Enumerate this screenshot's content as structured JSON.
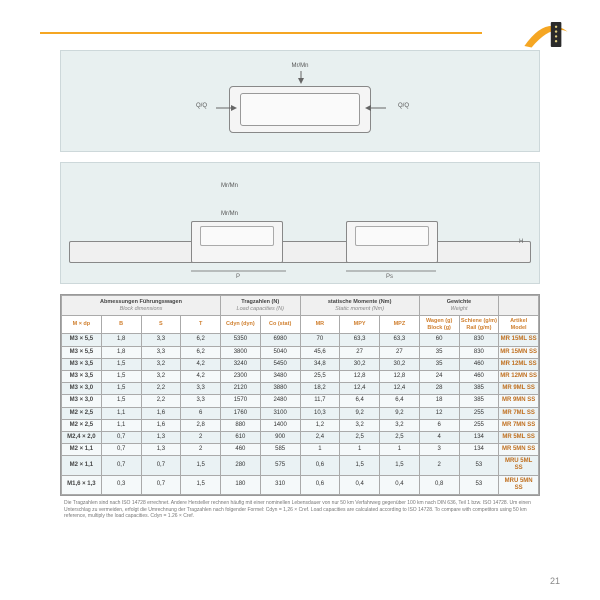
{
  "pageNumber": "21",
  "logo": {
    "swoosh_color": "#f5a623",
    "panel_color": "#2a2a2a",
    "dot_color": "#e0d080"
  },
  "diagram1": {
    "top_label": "Mr/Mn",
    "left_label": "Q/Q",
    "right_label": "Q/Q"
  },
  "diagram2": {
    "top_label": "Mr/Mn",
    "mid_label": "Mr/Mn",
    "dim_P": "P",
    "dim_Ps": "Ps",
    "dim_H": "H"
  },
  "table": {
    "groups": [
      "Abmessungen Führungswagen",
      "Tragzahlen (N)",
      "statische Momente (Nm)",
      "Gewichte",
      ""
    ],
    "groups_sub": [
      "Block dimensions",
      "Load capacities (N)",
      "Static moment (Nm)",
      "Weight",
      ""
    ],
    "columns": [
      "M × dp",
      "B",
      "S",
      "T",
      "Cdyn (dyn)",
      "Co (stat)",
      "MR",
      "MPY",
      "MPZ",
      "Wagen (g)\nBlock (g)",
      "Schiene (g/m)\nRail (g/m)",
      "Artikel\nModel"
    ],
    "rows": [
      [
        "M3 × 5,5",
        "1,8",
        "3,3",
        "6,2",
        "5350",
        "6980",
        "70",
        "63,3",
        "63,3",
        "60",
        "830",
        "MR 15ML SS"
      ],
      [
        "M3 × 5,5",
        "1,8",
        "3,3",
        "6,2",
        "3800",
        "5040",
        "45,6",
        "27",
        "27",
        "35",
        "830",
        "MR 15MN SS"
      ],
      [
        "M3 × 3,5",
        "1,5",
        "3,2",
        "4,2",
        "3240",
        "5450",
        "34,8",
        "30,2",
        "30,2",
        "35",
        "460",
        "MR 12ML SS"
      ],
      [
        "M3 × 3,5",
        "1,5",
        "3,2",
        "4,2",
        "2300",
        "3480",
        "25,5",
        "12,8",
        "12,8",
        "24",
        "460",
        "MR 12MN SS"
      ],
      [
        "M3 × 3,0",
        "1,5",
        "2,2",
        "3,3",
        "2120",
        "3880",
        "18,2",
        "12,4",
        "12,4",
        "28",
        "385",
        "MR 9ML SS"
      ],
      [
        "M3 × 3,0",
        "1,5",
        "2,2",
        "3,3",
        "1570",
        "2480",
        "11,7",
        "6,4",
        "6,4",
        "18",
        "385",
        "MR 9MN SS"
      ],
      [
        "M2 × 2,5",
        "1,1",
        "1,6",
        "6",
        "1760",
        "3100",
        "10,3",
        "9,2",
        "9,2",
        "12",
        "255",
        "MR 7ML SS"
      ],
      [
        "M2 × 2,5",
        "1,1",
        "1,6",
        "2,8",
        "880",
        "1400",
        "1,2",
        "3,2",
        "3,2",
        "6",
        "255",
        "MR 7MN SS"
      ],
      [
        "M2,4 × 2,0",
        "0,7",
        "1,3",
        "2",
        "610",
        "900",
        "2,4",
        "2,5",
        "2,5",
        "4",
        "134",
        "MR 5ML SS"
      ],
      [
        "M2 × 1,1",
        "0,7",
        "1,3",
        "2",
        "460",
        "585",
        "1",
        "1",
        "1",
        "3",
        "134",
        "MR 5MN SS"
      ],
      [
        "M2 × 1,1",
        "0,7",
        "0,7",
        "1,5",
        "280",
        "575",
        "0,6",
        "1,5",
        "1,5",
        "2",
        "53",
        "MRU 5ML SS"
      ],
      [
        "M1,6 × 1,3",
        "0,3",
        "0,7",
        "1,5",
        "180",
        "310",
        "0,6",
        "0,4",
        "0,4",
        "0,8",
        "53",
        "MRU 5MN SS"
      ]
    ]
  },
  "footnote": "Die Tragzahlen sind nach ISO 14728 errechnet. Andere Hersteller rechnen häufig mit einer nominellen Lebensdauer von nur 50 km Verfahrweg gegenüber 100 km nach DIN 636, Teil 1 bzw. ISO 14728. Um einen Unterschlag zu vermeiden, erfolgt die Umrechnung der Tragzahlen nach folgender Formel: Cdyn = 1,26 × Cref. Load capacities are calculated according to ISO 14728. To compare with competitors using 50 km reference, multiply the load capacities. Cdyn = 1.26 × Cref."
}
